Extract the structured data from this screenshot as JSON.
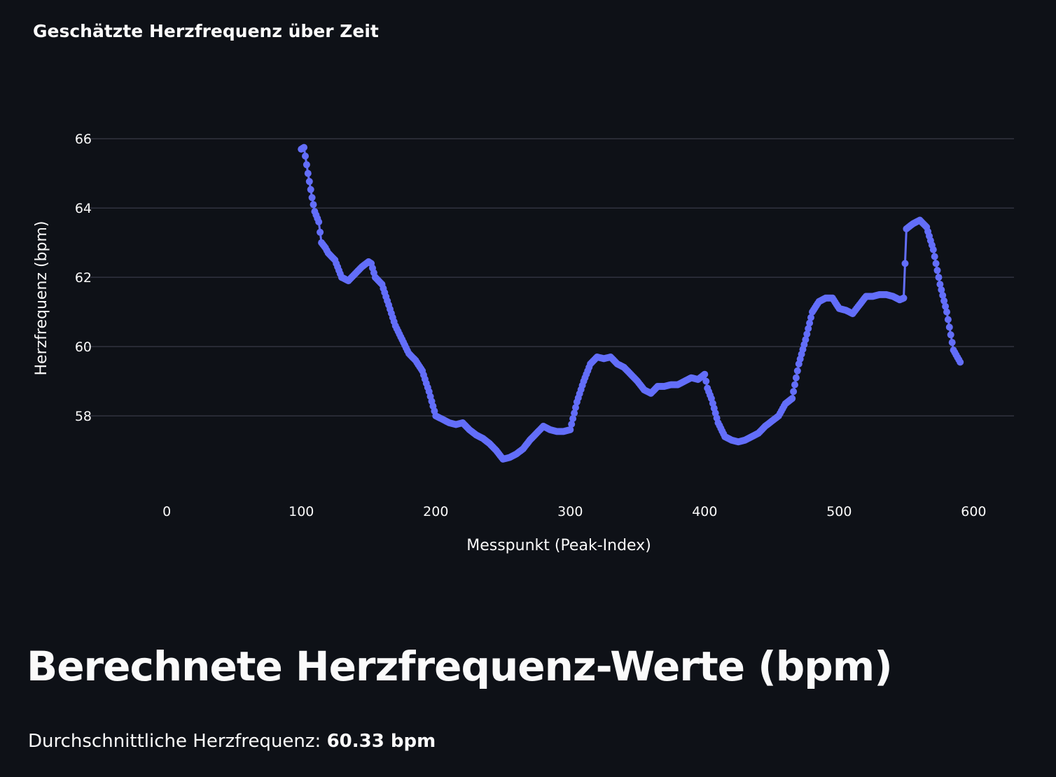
{
  "chart_data": {
    "type": "line",
    "title": "Geschätzte Herzfrequenz über Zeit",
    "xlabel": "Messpunkt (Peak-Index)",
    "ylabel": "Herzfrequenz (bpm)",
    "xlim": [
      -60,
      630
    ],
    "ylim": [
      55.9,
      67.5
    ],
    "xticks": [
      0,
      100,
      200,
      300,
      400,
      500,
      600
    ],
    "yticks": [
      58,
      60,
      62,
      64,
      66
    ],
    "grid": "horizontal",
    "legend": "none",
    "series_color": "#636efa",
    "series": [
      {
        "x": [
          100,
          102,
          105,
          108,
          110,
          113,
          115,
          118,
          120,
          125,
          130,
          135,
          140,
          145,
          150,
          152,
          155,
          160,
          165,
          170,
          175,
          180,
          185,
          190,
          195,
          200,
          205,
          210,
          215,
          220,
          225,
          230,
          235,
          240,
          245,
          250,
          255,
          260,
          265,
          270,
          275,
          280,
          285,
          290,
          295,
          300,
          305,
          310,
          315,
          320,
          325,
          330,
          335,
          340,
          345,
          350,
          355,
          360,
          365,
          370,
          375,
          380,
          385,
          390,
          395,
          400,
          402,
          405,
          410,
          415,
          420,
          425,
          430,
          435,
          440,
          445,
          450,
          455,
          460,
          465,
          470,
          475,
          480,
          485,
          490,
          495,
          500,
          505,
          510,
          515,
          520,
          525,
          530,
          535,
          540,
          545,
          548,
          550,
          555,
          560,
          565,
          570,
          575,
          580,
          585,
          590
        ],
        "y": [
          65.7,
          65.75,
          65.0,
          64.3,
          63.9,
          63.6,
          63.0,
          62.85,
          62.7,
          62.5,
          62.0,
          61.9,
          62.1,
          62.3,
          62.45,
          62.4,
          62.0,
          61.8,
          61.2,
          60.6,
          60.2,
          59.8,
          59.6,
          59.3,
          58.7,
          58.0,
          57.9,
          57.8,
          57.75,
          57.8,
          57.6,
          57.45,
          57.35,
          57.2,
          57.0,
          56.75,
          56.8,
          56.9,
          57.05,
          57.3,
          57.5,
          57.7,
          57.6,
          57.55,
          57.55,
          57.6,
          58.4,
          59.0,
          59.5,
          59.7,
          59.65,
          59.7,
          59.5,
          59.4,
          59.2,
          59.0,
          58.75,
          58.65,
          58.85,
          58.85,
          58.9,
          58.9,
          59.0,
          59.1,
          59.05,
          59.2,
          58.8,
          58.5,
          57.8,
          57.4,
          57.3,
          57.25,
          57.3,
          57.4,
          57.5,
          57.7,
          57.85,
          58.0,
          58.35,
          58.5,
          59.5,
          60.2,
          61.0,
          61.3,
          61.4,
          61.4,
          61.1,
          61.05,
          60.95,
          61.2,
          61.45,
          61.45,
          61.5,
          61.5,
          61.45,
          61.35,
          61.4,
          63.4,
          63.55,
          63.65,
          63.45,
          62.8,
          61.8,
          61.0,
          59.9,
          59.55
        ]
      }
    ]
  },
  "section": {
    "heading": "Berechnete Herzfrequenz-Werte (bpm)",
    "avg_label": "Durchschnittliche Herzfrequenz:",
    "avg_value": "60.33 bpm"
  }
}
